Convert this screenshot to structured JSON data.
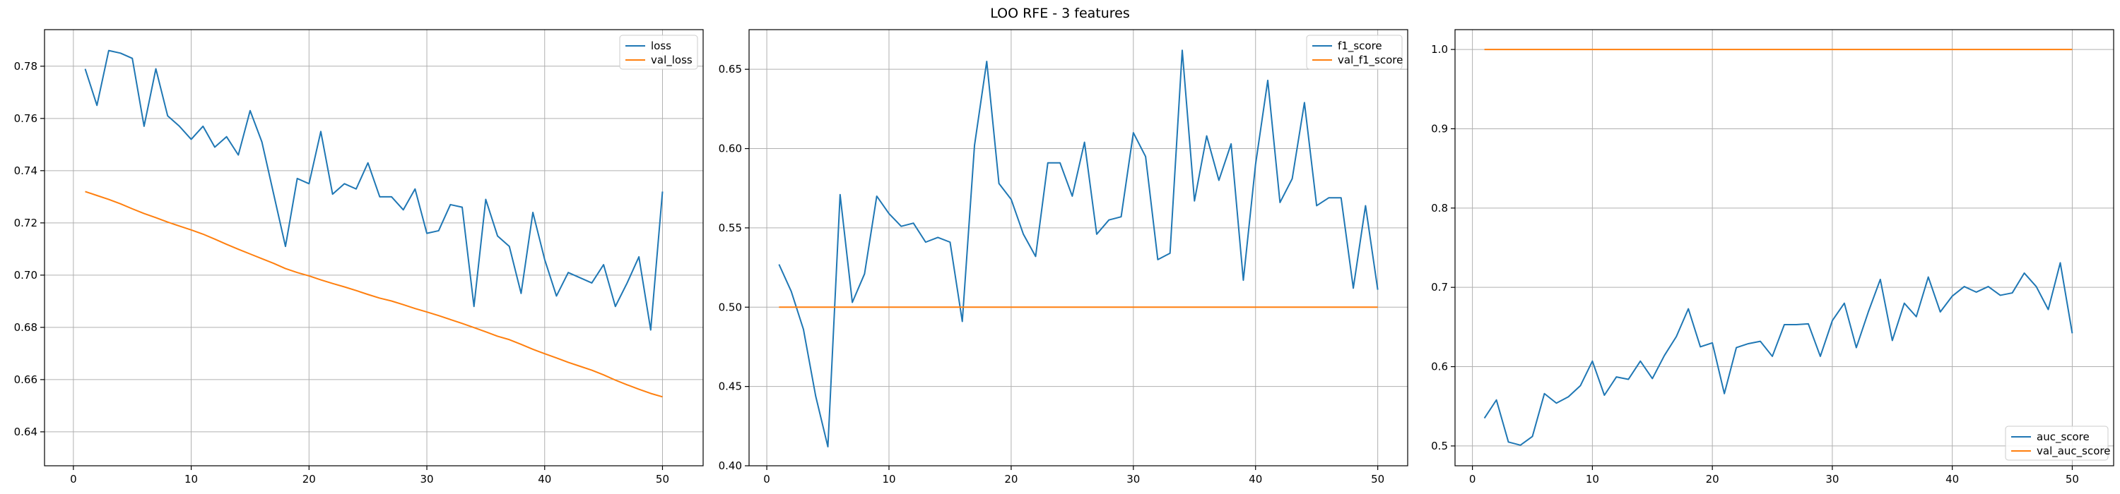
{
  "title": "LOO RFE - 3 features",
  "colors": {
    "series1": "#1f77b4",
    "series2": "#ff7f0e",
    "grid": "#b0b0b0",
    "axis": "#000000"
  },
  "chart_data": [
    {
      "type": "line",
      "title": "",
      "xlabel": "",
      "ylabel": "",
      "xlim": [
        -2.45,
        53.45
      ],
      "ylim": [
        0.627,
        0.794
      ],
      "xticks": [
        0,
        10,
        20,
        30,
        40,
        50
      ],
      "yticks": [
        0.64,
        0.66,
        0.68,
        0.7,
        0.72,
        0.74,
        0.76,
        0.78
      ],
      "ytick_labels": [
        "0.64",
        "0.66",
        "0.68",
        "0.70",
        "0.72",
        "0.74",
        "0.76",
        "0.78"
      ],
      "grid": true,
      "legend": "top-right",
      "x": [
        1,
        2,
        3,
        4,
        5,
        6,
        7,
        8,
        9,
        10,
        11,
        12,
        13,
        14,
        15,
        16,
        17,
        18,
        19,
        20,
        21,
        22,
        23,
        24,
        25,
        26,
        27,
        28,
        29,
        30,
        31,
        32,
        33,
        34,
        35,
        36,
        37,
        38,
        39,
        40,
        41,
        42,
        43,
        44,
        45,
        46,
        47,
        48,
        49,
        50
      ],
      "series": [
        {
          "name": "loss",
          "values": [
            0.779,
            0.765,
            0.786,
            0.785,
            0.783,
            0.757,
            0.779,
            0.761,
            0.757,
            0.752,
            0.757,
            0.749,
            0.753,
            0.746,
            0.763,
            0.751,
            0.731,
            0.711,
            0.737,
            0.735,
            0.755,
            0.731,
            0.735,
            0.733,
            0.743,
            0.73,
            0.73,
            0.725,
            0.733,
            0.716,
            0.717,
            0.727,
            0.726,
            0.688,
            0.729,
            0.715,
            0.711,
            0.693,
            0.724,
            0.706,
            0.692,
            0.701,
            0.699,
            0.697,
            0.704,
            0.688,
            0.697,
            0.707,
            0.679,
            0.732
          ]
        },
        {
          "name": "val_loss",
          "values": [
            0.732,
            0.7305,
            0.729,
            0.7273,
            0.7254,
            0.7236,
            0.722,
            0.7203,
            0.7188,
            0.7173,
            0.7157,
            0.7138,
            0.7118,
            0.7099,
            0.7081,
            0.7063,
            0.7045,
            0.7025,
            0.701,
            0.6997,
            0.6982,
            0.6968,
            0.6955,
            0.6941,
            0.6926,
            0.6912,
            0.6901,
            0.6887,
            0.6872,
            0.6859,
            0.6845,
            0.683,
            0.6815,
            0.6799,
            0.6783,
            0.6766,
            0.6753,
            0.6735,
            0.6716,
            0.6699,
            0.6683,
            0.6666,
            0.6651,
            0.6636,
            0.6618,
            0.6598,
            0.658,
            0.6563,
            0.6547,
            0.6534
          ]
        }
      ]
    },
    {
      "type": "line",
      "title": "",
      "xlabel": "",
      "ylabel": "",
      "xlim": [
        -1.45,
        52.45
      ],
      "ylim": [
        0.4,
        0.675
      ],
      "xticks": [
        0,
        10,
        20,
        30,
        40,
        50
      ],
      "yticks": [
        0.4,
        0.45,
        0.5,
        0.55,
        0.6,
        0.65
      ],
      "ytick_labels": [
        "0.40",
        "0.45",
        "0.50",
        "0.55",
        "0.60",
        "0.65"
      ],
      "grid": true,
      "legend": "top-right",
      "x": [
        1,
        2,
        3,
        4,
        5,
        6,
        7,
        8,
        9,
        10,
        11,
        12,
        13,
        14,
        15,
        16,
        17,
        18,
        19,
        20,
        21,
        22,
        23,
        24,
        25,
        26,
        27,
        28,
        29,
        30,
        31,
        32,
        33,
        34,
        35,
        36,
        37,
        38,
        39,
        40,
        41,
        42,
        43,
        44,
        45,
        46,
        47,
        48,
        49,
        50
      ],
      "series": [
        {
          "name": "f1_score",
          "values": [
            0.527,
            0.51,
            0.486,
            0.444,
            0.412,
            0.571,
            0.503,
            0.521,
            0.57,
            0.559,
            0.551,
            0.553,
            0.541,
            0.544,
            0.541,
            0.491,
            0.602,
            0.655,
            0.578,
            0.568,
            0.546,
            0.532,
            0.591,
            0.591,
            0.57,
            0.604,
            0.546,
            0.555,
            0.557,
            0.61,
            0.595,
            0.53,
            0.534,
            0.662,
            0.567,
            0.608,
            0.58,
            0.603,
            0.517,
            0.59,
            0.643,
            0.566,
            0.581,
            0.629,
            0.564,
            0.569,
            0.569,
            0.512,
            0.564,
            0.511
          ]
        },
        {
          "name": "val_f1_score",
          "values": [
            0.5,
            0.5,
            0.5,
            0.5,
            0.5,
            0.5,
            0.5,
            0.5,
            0.5,
            0.5,
            0.5,
            0.5,
            0.5,
            0.5,
            0.5,
            0.5,
            0.5,
            0.5,
            0.5,
            0.5,
            0.5,
            0.5,
            0.5,
            0.5,
            0.5,
            0.5,
            0.5,
            0.5,
            0.5,
            0.5,
            0.5,
            0.5,
            0.5,
            0.5,
            0.5,
            0.5,
            0.5,
            0.5,
            0.5,
            0.5,
            0.5,
            0.5,
            0.5,
            0.5,
            0.5,
            0.5,
            0.5,
            0.5,
            0.5,
            0.5
          ]
        }
      ]
    },
    {
      "type": "line",
      "title": "",
      "xlabel": "",
      "ylabel": "",
      "xlim": [
        -1.45,
        53.45
      ],
      "ylim": [
        0.475,
        1.025
      ],
      "xticks": [
        0,
        10,
        20,
        30,
        40,
        50
      ],
      "yticks": [
        0.5,
        0.6,
        0.7,
        0.8,
        0.9,
        1.0
      ],
      "ytick_labels": [
        "0.5",
        "0.6",
        "0.7",
        "0.8",
        "0.9",
        "1.0"
      ],
      "grid": true,
      "legend": "bottom-right",
      "x": [
        1,
        2,
        3,
        4,
        5,
        6,
        7,
        8,
        9,
        10,
        11,
        12,
        13,
        14,
        15,
        16,
        17,
        18,
        19,
        20,
        21,
        22,
        23,
        24,
        25,
        26,
        27,
        28,
        29,
        30,
        31,
        32,
        33,
        34,
        35,
        36,
        37,
        38,
        39,
        40,
        41,
        42,
        43,
        44,
        45,
        46,
        47,
        48,
        49,
        50
      ],
      "series": [
        {
          "name": "auc_score",
          "values": [
            0.535,
            0.558,
            0.505,
            0.501,
            0.512,
            0.566,
            0.554,
            0.562,
            0.576,
            0.607,
            0.564,
            0.587,
            0.584,
            0.607,
            0.585,
            0.614,
            0.638,
            0.673,
            0.625,
            0.63,
            0.566,
            0.624,
            0.629,
            0.632,
            0.613,
            0.653,
            0.653,
            0.654,
            0.613,
            0.658,
            0.68,
            0.624,
            0.669,
            0.71,
            0.633,
            0.68,
            0.663,
            0.713,
            0.669,
            0.689,
            0.701,
            0.694,
            0.701,
            0.69,
            0.693,
            0.718,
            0.701,
            0.672,
            0.731,
            0.642
          ]
        },
        {
          "name": "val_auc_score",
          "values": [
            1.0,
            1.0,
            1.0,
            1.0,
            1.0,
            1.0,
            1.0,
            1.0,
            1.0,
            1.0,
            1.0,
            1.0,
            1.0,
            1.0,
            1.0,
            1.0,
            1.0,
            1.0,
            1.0,
            1.0,
            1.0,
            1.0,
            1.0,
            1.0,
            1.0,
            1.0,
            1.0,
            1.0,
            1.0,
            1.0,
            1.0,
            1.0,
            1.0,
            1.0,
            1.0,
            1.0,
            1.0,
            1.0,
            1.0,
            1.0,
            1.0,
            1.0,
            1.0,
            1.0,
            1.0,
            1.0,
            1.0,
            1.0,
            1.0,
            1.0
          ]
        }
      ]
    }
  ]
}
